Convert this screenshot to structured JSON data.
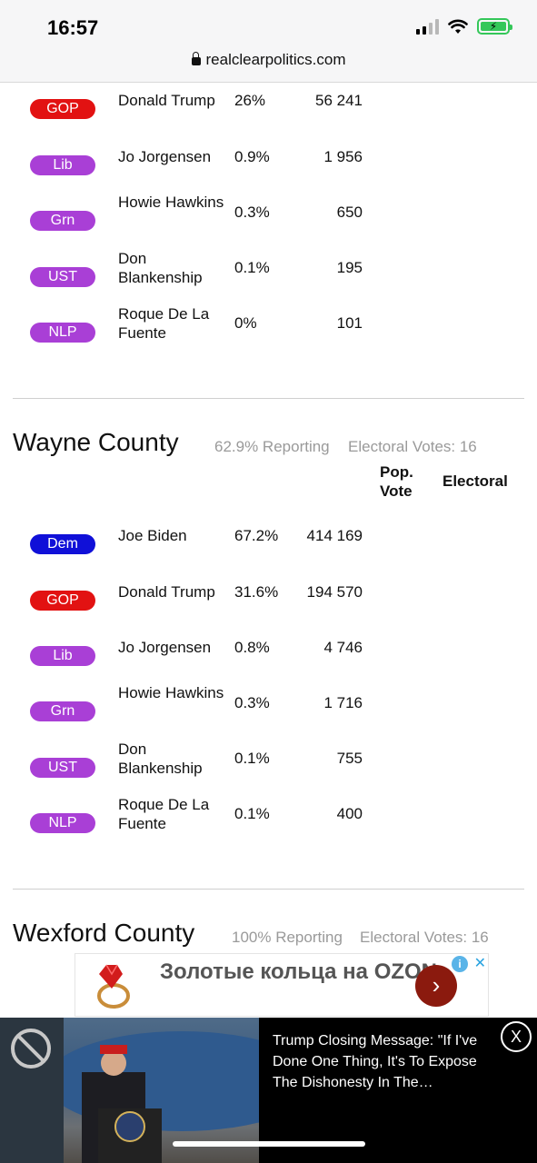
{
  "status_bar": {
    "time": "16:57"
  },
  "browser": {
    "url": "realclearpolitics.com"
  },
  "table_top": {
    "rows": [
      {
        "party": "GOP",
        "candidate": "Donald Trump",
        "pct": "26%",
        "votes": "56 241"
      },
      {
        "party": "Lib",
        "candidate": "Jo Jorgensen",
        "pct": "0.9%",
        "votes": "1 956"
      },
      {
        "party": "Grn",
        "candidate": "Howie Hawkins",
        "pct": "0.3%",
        "votes": "650"
      },
      {
        "party": "UST",
        "candidate": "Don Blankenship",
        "pct": "0.1%",
        "votes": "195"
      },
      {
        "party": "NLP",
        "candidate": "Roque De La Fuente",
        "pct": "0%",
        "votes": "101"
      }
    ]
  },
  "wayne": {
    "title": "Wayne County",
    "reporting": "62.9% Reporting",
    "electoral_votes": "Electoral Votes: 16",
    "header_pop_vote": "Pop. Vote",
    "header_electoral": "Electoral",
    "rows": [
      {
        "party": "Dem",
        "candidate": "Joe Biden",
        "pct": "67.2%",
        "votes": "414 169"
      },
      {
        "party": "GOP",
        "candidate": "Donald Trump",
        "pct": "31.6%",
        "votes": "194 570"
      },
      {
        "party": "Lib",
        "candidate": "Jo Jorgensen",
        "pct": "0.8%",
        "votes": "4 746"
      },
      {
        "party": "Grn",
        "candidate": "Howie Hawkins",
        "pct": "0.3%",
        "votes": "1 716"
      },
      {
        "party": "UST",
        "candidate": "Don Blankenship",
        "pct": "0.1%",
        "votes": "755"
      },
      {
        "party": "NLP",
        "candidate": "Roque De La Fuente",
        "pct": "0.1%",
        "votes": "400"
      }
    ]
  },
  "wexford": {
    "title": "Wexford County",
    "reporting": "100% Reporting",
    "electoral_votes": "Electoral Votes: 16"
  },
  "ad": {
    "text": "Золотые кольца на OZON",
    "go_icon": "chevron-right-icon",
    "info_icon": "info-icon",
    "close_label": "✕"
  },
  "video": {
    "title": "Trump Closing Message: \"If I've Done One Thing, It's To Expose The Dishonesty In The…",
    "close_label": "X"
  },
  "colors": {
    "dem": "#1010d8",
    "gop": "#e21212",
    "third_party": "#a93fd6"
  }
}
